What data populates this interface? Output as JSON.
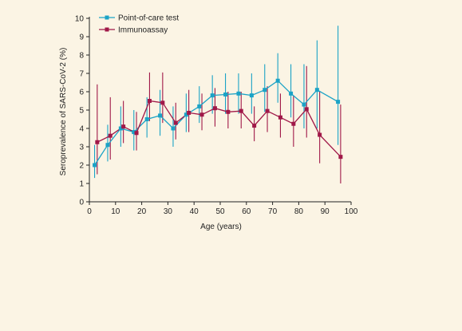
{
  "chart_data": {
    "type": "line",
    "ylabel": "Seroprevalence of SARS-CoV-2 (%)",
    "xlabel": "Age (years)",
    "xlim": [
      0,
      100
    ],
    "ylim": [
      0,
      10
    ],
    "xticks": [
      0,
      10,
      20,
      30,
      40,
      50,
      60,
      70,
      80,
      90,
      100
    ],
    "yticks": [
      0,
      1,
      2,
      3,
      4,
      5,
      6,
      7,
      8,
      9,
      10
    ],
    "grid": false,
    "legend_position": "top-left",
    "series": [
      {
        "name": "Point-of-care test",
        "color": "#1ba3c6",
        "marker": "square",
        "points": [
          {
            "x": 2,
            "y": 2.0,
            "lo": 1.3,
            "hi": 3.1
          },
          {
            "x": 7,
            "y": 3.1,
            "lo": 2.2,
            "hi": 4.2
          },
          {
            "x": 12,
            "y": 4.0,
            "lo": 3.0,
            "hi": 5.2
          },
          {
            "x": 17,
            "y": 3.8,
            "lo": 2.8,
            "hi": 5.0
          },
          {
            "x": 22,
            "y": 4.5,
            "lo": 3.5,
            "hi": 5.7
          },
          {
            "x": 27,
            "y": 4.7,
            "lo": 3.6,
            "hi": 6.1
          },
          {
            "x": 32,
            "y": 4.0,
            "lo": 3.0,
            "hi": 5.2
          },
          {
            "x": 37,
            "y": 4.75,
            "lo": 3.8,
            "hi": 5.9
          },
          {
            "x": 42,
            "y": 5.2,
            "lo": 4.3,
            "hi": 6.3
          },
          {
            "x": 47,
            "y": 5.8,
            "lo": 4.8,
            "hi": 6.9
          },
          {
            "x": 52,
            "y": 5.85,
            "lo": 4.8,
            "hi": 7.0
          },
          {
            "x": 57,
            "y": 5.9,
            "lo": 4.8,
            "hi": 7.0
          },
          {
            "x": 62,
            "y": 5.8,
            "lo": 4.8,
            "hi": 7.0
          },
          {
            "x": 67,
            "y": 6.1,
            "lo": 4.9,
            "hi": 7.5
          },
          {
            "x": 72,
            "y": 6.6,
            "lo": 5.4,
            "hi": 8.1
          },
          {
            "x": 77,
            "y": 5.9,
            "lo": 4.6,
            "hi": 7.5
          },
          {
            "x": 82,
            "y": 5.3,
            "lo": 4.0,
            "hi": 7.5
          },
          {
            "x": 87,
            "y": 6.1,
            "lo": 4.0,
            "hi": 8.8
          },
          {
            "x": 95,
            "y": 5.45,
            "lo": 3.1,
            "hi": 9.6
          }
        ]
      },
      {
        "name": "Immunoassay",
        "color": "#a01848",
        "marker": "square",
        "points": [
          {
            "x": 3,
            "y": 3.25,
            "lo": 1.5,
            "hi": 6.4
          },
          {
            "x": 8,
            "y": 3.6,
            "lo": 2.3,
            "hi": 5.7
          },
          {
            "x": 13,
            "y": 4.1,
            "lo": 3.2,
            "hi": 5.5
          },
          {
            "x": 18,
            "y": 3.75,
            "lo": 2.8,
            "hi": 4.9
          },
          {
            "x": 23,
            "y": 5.5,
            "lo": 4.4,
            "hi": 7.05
          },
          {
            "x": 28,
            "y": 5.4,
            "lo": 4.3,
            "hi": 7.05
          },
          {
            "x": 33,
            "y": 4.3,
            "lo": 3.4,
            "hi": 5.4
          },
          {
            "x": 38,
            "y": 4.85,
            "lo": 3.8,
            "hi": 6.1
          },
          {
            "x": 43,
            "y": 4.75,
            "lo": 3.9,
            "hi": 5.9
          },
          {
            "x": 48,
            "y": 5.1,
            "lo": 4.1,
            "hi": 6.2
          },
          {
            "x": 53,
            "y": 4.9,
            "lo": 4.0,
            "hi": 6.0
          },
          {
            "x": 58,
            "y": 4.95,
            "lo": 4.0,
            "hi": 6.0
          },
          {
            "x": 63,
            "y": 4.15,
            "lo": 3.3,
            "hi": 5.2
          },
          {
            "x": 68,
            "y": 4.95,
            "lo": 3.8,
            "hi": 6.3
          },
          {
            "x": 73,
            "y": 4.6,
            "lo": 3.5,
            "hi": 5.9
          },
          {
            "x": 78,
            "y": 4.25,
            "lo": 3.0,
            "hi": 5.8
          },
          {
            "x": 83,
            "y": 5.05,
            "lo": 3.5,
            "hi": 7.4
          },
          {
            "x": 88,
            "y": 3.65,
            "lo": 2.1,
            "hi": 6.0
          },
          {
            "x": 96,
            "y": 2.45,
            "lo": 1.0,
            "hi": 5.3
          }
        ]
      }
    ]
  }
}
